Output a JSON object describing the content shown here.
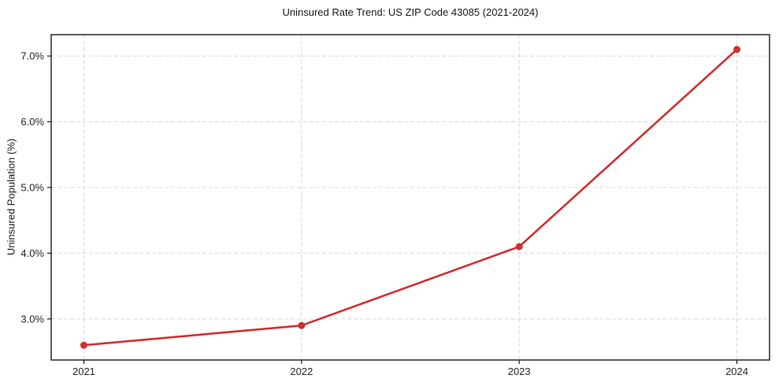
{
  "chart_data": {
    "type": "line",
    "title": "Uninsured Rate Trend: US ZIP Code 43085 (2021-2024)",
    "xlabel": "",
    "ylabel": "Uninsured Population (%)",
    "x": [
      2021,
      2022,
      2023,
      2024
    ],
    "x_tick_labels": [
      "2021",
      "2022",
      "2023",
      "2024"
    ],
    "series": [
      {
        "name": "Uninsured rate",
        "values": [
          2.6,
          2.9,
          4.1,
          7.1
        ]
      }
    ],
    "y_ticks": [
      3.0,
      4.0,
      5.0,
      6.0,
      7.0
    ],
    "y_tick_labels": [
      "3.0%",
      "4.0%",
      "5.0%",
      "6.0%",
      "7.0%"
    ],
    "xlim": [
      2020.85,
      2024.15
    ],
    "ylim": [
      2.375,
      7.325
    ],
    "grid": true,
    "grid_style": "dashed",
    "legend": false,
    "colors": {
      "line": "#d32f2f",
      "marker": "#d32f2f",
      "grid": "#d8d8d8",
      "axis": "#1a1a1a",
      "tick_text": "#262626",
      "background": "#ffffff"
    }
  }
}
